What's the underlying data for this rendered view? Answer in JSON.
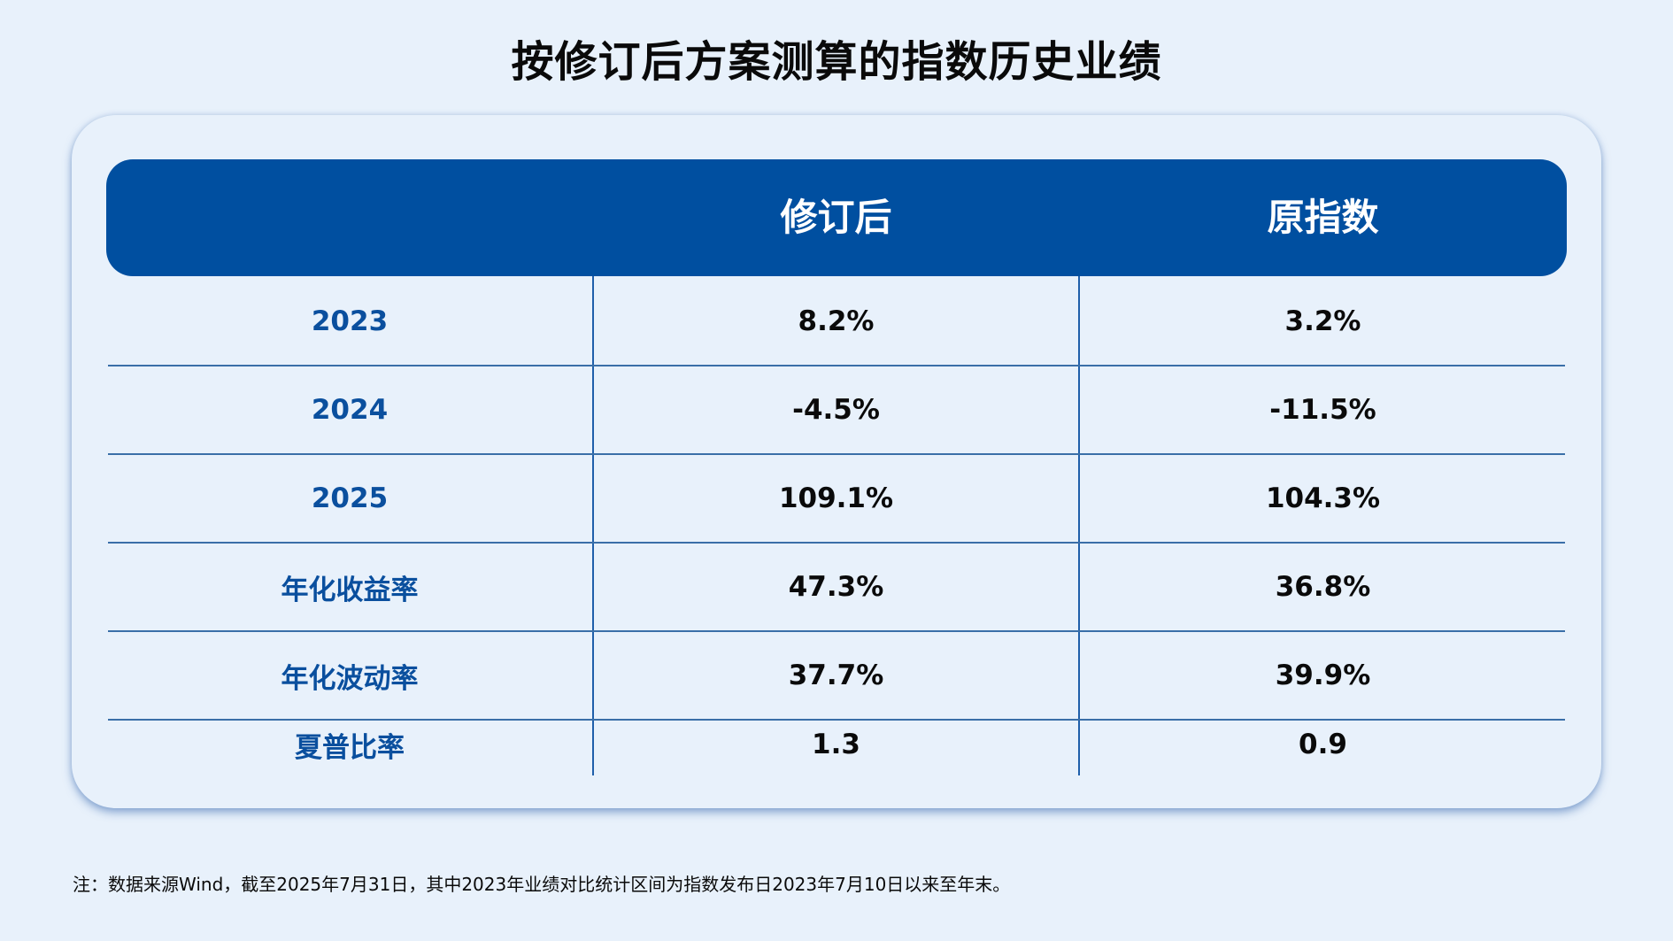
{
  "title": "按修订后方案测算的指数历史业绩",
  "colors": {
    "background": "#E8F1FB",
    "header_bg": "#004FA0",
    "header_text": "#FFFFFF",
    "row_label": "#0A4F9E",
    "value_text": "#0A0A0A",
    "grid_line": "#3A6FA8"
  },
  "table": {
    "headers": [
      "",
      "修订后",
      "原指数"
    ],
    "rows": [
      {
        "label": "2023",
        "revised": "8.2%",
        "original": "3.2%"
      },
      {
        "label": "2024",
        "revised": "-4.5%",
        "original": "-11.5%"
      },
      {
        "label": "2025",
        "revised": "109.1%",
        "original": "104.3%"
      },
      {
        "label": "年化收益率",
        "revised": "47.3%",
        "original": "36.8%"
      },
      {
        "label": "年化波动率",
        "revised": "37.7%",
        "original": "39.9%"
      },
      {
        "label": "夏普比率",
        "revised": "1.3",
        "original": "0.9"
      }
    ]
  },
  "footnote": "注：数据来源Wind，截至2025年7月31日，其中2023年业绩对比统计区间为指数发布日2023年7月10日以来至年末。"
}
